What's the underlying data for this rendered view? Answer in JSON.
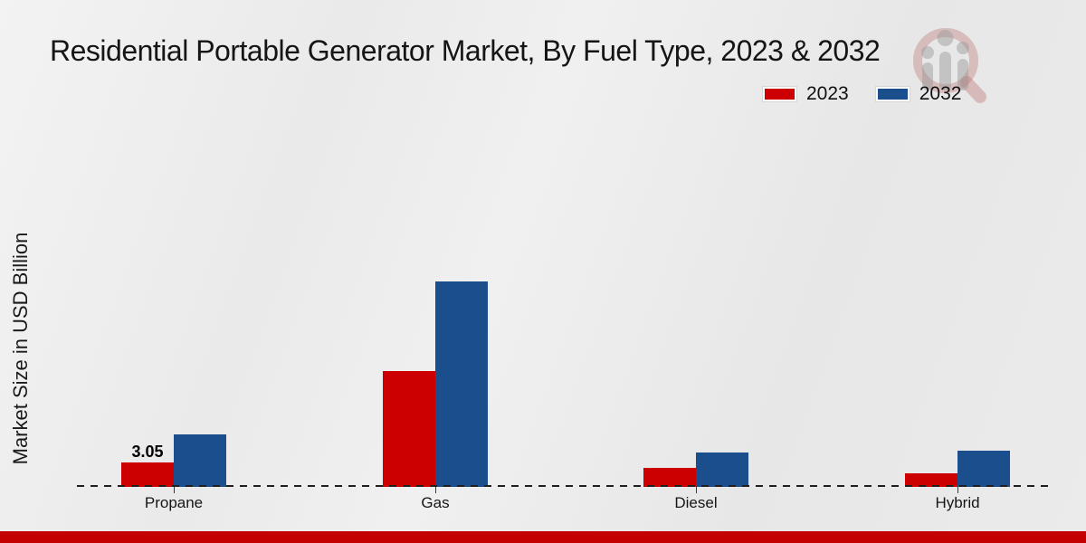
{
  "header": {
    "title": "Residential Portable Generator Market, By Fuel Type, 2023 & 2032"
  },
  "y_axis": {
    "label": "Market Size in USD Billion"
  },
  "legend": {
    "items": [
      {
        "label": "2023",
        "color": "#cc0000"
      },
      {
        "label": "2032",
        "color": "#1a4e8c"
      }
    ]
  },
  "watermark": {
    "icon": "magnifier-bar-chart-logo"
  },
  "footer": {
    "bar_color": "#c40000"
  },
  "chart_data": {
    "type": "bar",
    "title": "Residential Portable Generator Market, By Fuel Type, 2023 & 2032",
    "categories": [
      "Propane",
      "Gas",
      "Diesel",
      "Hybrid"
    ],
    "series": [
      {
        "name": "2023",
        "color": "#cc0000",
        "values": [
          3.05,
          14.2,
          2.3,
          1.7
        ]
      },
      {
        "name": "2032",
        "color": "#1a4e8c",
        "values": [
          6.4,
          25.2,
          4.2,
          4.4
        ]
      }
    ],
    "data_labels": [
      {
        "category": "Propane",
        "series": "2023",
        "text": "3.05"
      }
    ],
    "xlabel": "",
    "ylabel": "Market Size in USD Billion",
    "ylim": [
      0,
      28
    ],
    "grid": false,
    "legend_position": "top-right",
    "baseline_style": "dashed"
  }
}
